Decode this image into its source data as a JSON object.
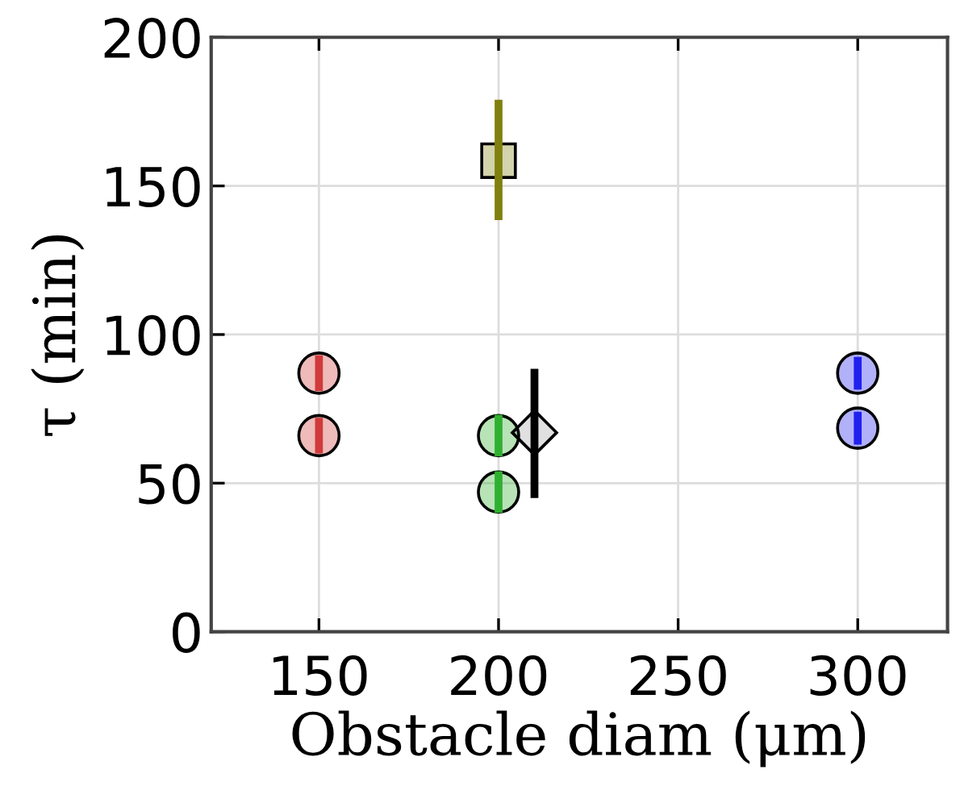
{
  "chart_data": {
    "type": "scatter",
    "xlabel": "Obstacle diam (μm)",
    "ylabel": "τ (min)",
    "xlim": [
      120,
      325
    ],
    "xticks": [
      150,
      200,
      250,
      300
    ],
    "ylim": [
      0,
      200
    ],
    "yticks": [
      0,
      50,
      100,
      150,
      200
    ],
    "grid": true,
    "series": [
      {
        "color": "#d03a3a",
        "marker": "circle",
        "x": [
          150,
          150
        ],
        "values": [
          87,
          66
        ],
        "errors": [
          6,
          6
        ]
      },
      {
        "color": "#30b030",
        "marker": "circle",
        "x": [
          200,
          200
        ],
        "values": [
          66,
          47
        ],
        "errors": [
          7,
          7
        ]
      },
      {
        "color": "#2020f0",
        "marker": "circle",
        "x": [
          300,
          300
        ],
        "values": [
          87,
          68.5
        ],
        "errors": [
          5.5,
          5.5
        ]
      },
      {
        "color": "#808010",
        "marker": "square",
        "x": [
          200
        ],
        "values": [
          158.5
        ],
        "errors": [
          [
            138.5,
            179
          ]
        ]
      },
      {
        "color": "#000000",
        "marker": "diamond",
        "x": [
          210
        ],
        "values": [
          67
        ],
        "errors": [
          [
            45,
            88.5
          ]
        ]
      }
    ]
  }
}
